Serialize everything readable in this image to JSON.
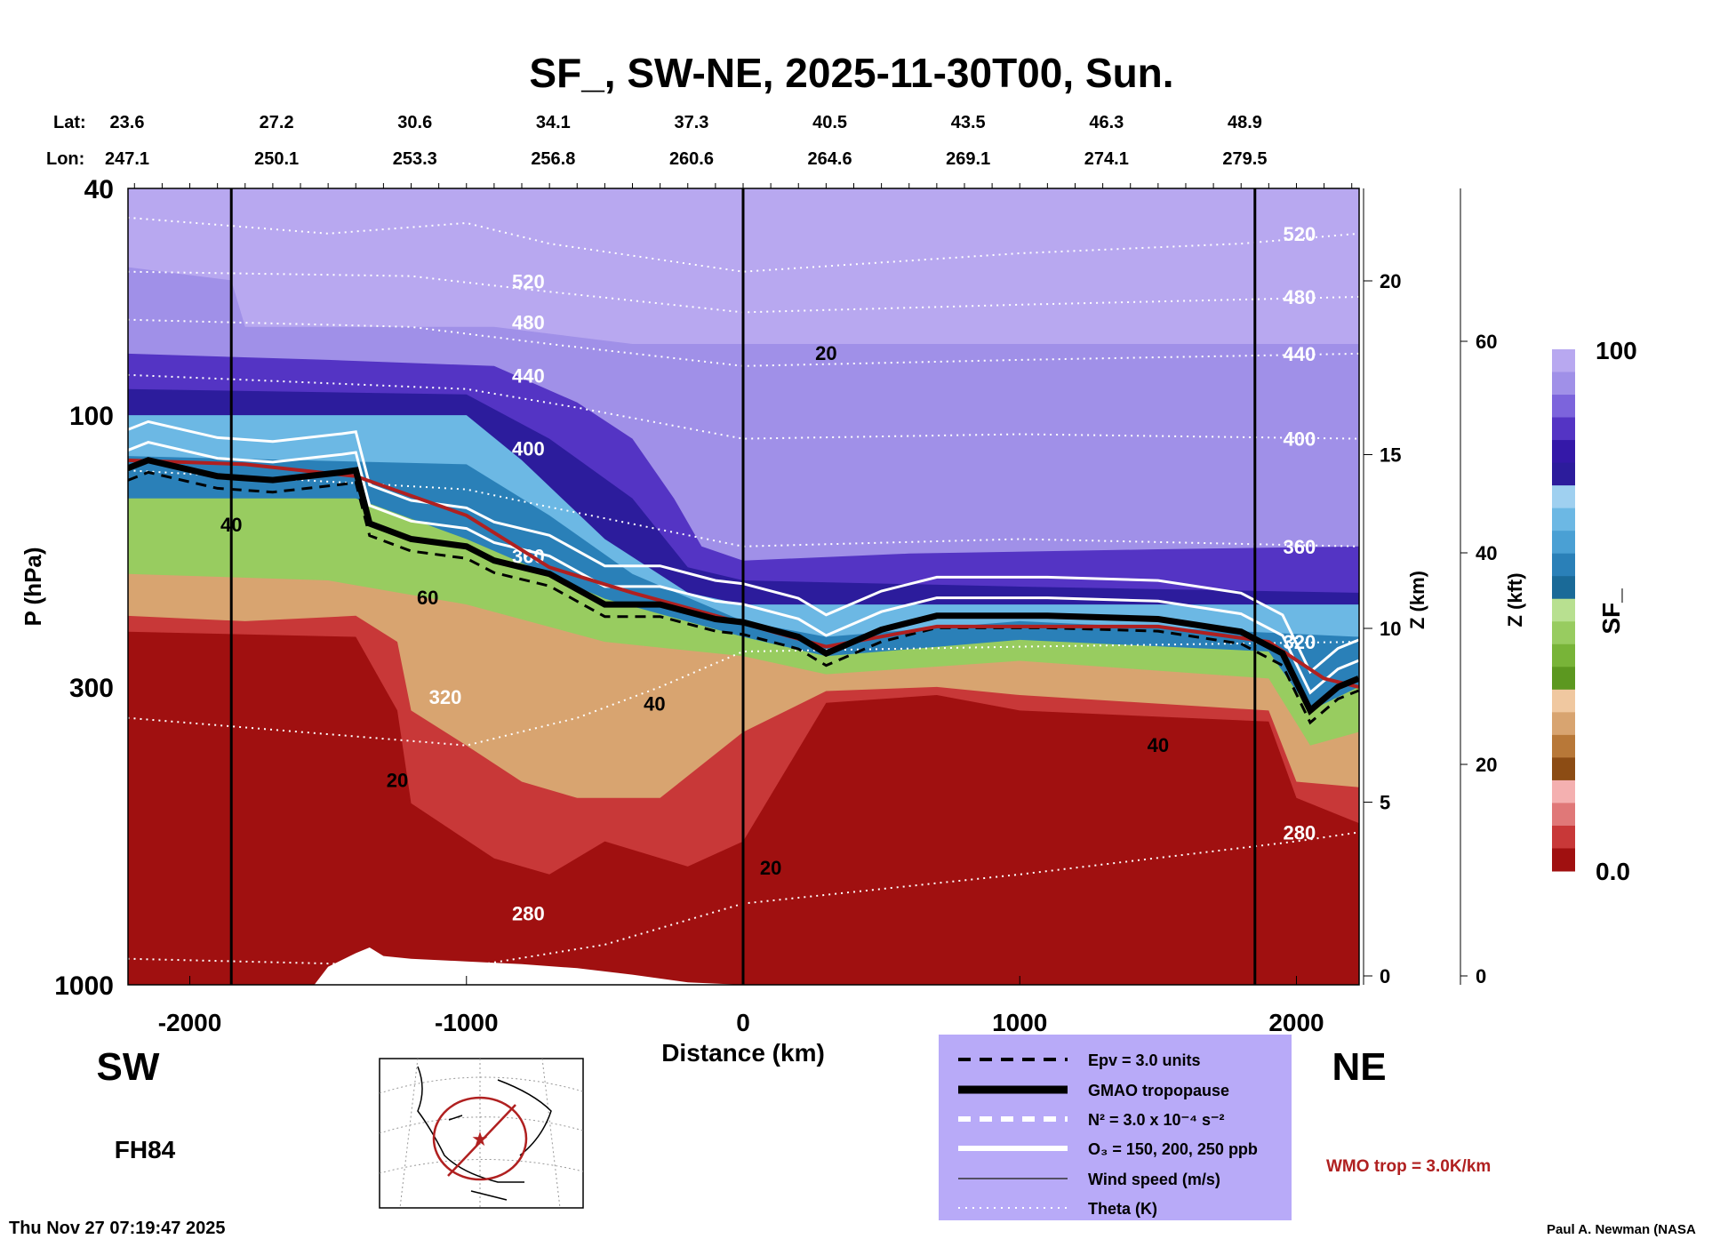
{
  "chart_data": {
    "type": "heatmap",
    "title": "SF_, SW-NE, 2025-11-30T00, Sun.",
    "xlabel": "Distance (km)",
    "ylabel": "P (hPa)",
    "xlim": [
      -2225,
      2225
    ],
    "ylim": [
      1000,
      40
    ],
    "y_scale": "log",
    "x_ticks": [
      -2000,
      -1000,
      0,
      1000,
      2000
    ],
    "y_ticks": [
      40,
      100,
      300,
      1000
    ],
    "lat_label": "Lat:",
    "lon_label": "Lon:",
    "lat_lon_positions_km": [
      -2225,
      -1725,
      -1225,
      -725,
      -225,
      275,
      775,
      1275,
      1775
    ],
    "lat": [
      "23.6",
      "27.2",
      "30.6",
      "34.1",
      "37.3",
      "40.5",
      "43.5",
      "46.3",
      "48.9"
    ],
    "lon": [
      "247.1",
      "250.1",
      "253.3",
      "256.8",
      "260.6",
      "264.6",
      "269.1",
      "274.1",
      "279.5"
    ],
    "vertical_lines_km": [
      -1850,
      0,
      1850
    ],
    "z_km_axis": {
      "label": "Z (km)",
      "ticks": [
        0,
        5,
        10,
        15,
        20
      ]
    },
    "z_kft_axis": {
      "label": "Z (kft)",
      "ticks": [
        0,
        20,
        40,
        60
      ]
    },
    "colorbar": {
      "label": "SF_",
      "min_label": "0.0",
      "max_label": "100",
      "colors": [
        "#b8a8f0",
        "#a090e8",
        "#7c64dc",
        "#5434c4",
        "#3418a8",
        "#2c1c9c",
        "#9fd0f0",
        "#6cb8e4",
        "#4aa0d4",
        "#2a80b8",
        "#1a6a98",
        "#b8e090",
        "#98cc60",
        "#78b438",
        "#5c9820",
        "#f0c8a0",
        "#d8a470",
        "#b87838",
        "#8c4c14",
        "#f4b0b0",
        "#e07878",
        "#c83838",
        "#a01010"
      ]
    },
    "bands": [
      {
        "color": "#a090e8",
        "top_hPa": [
          [
            -2225,
            55
          ],
          [
            -1850,
            58
          ],
          [
            -1800,
            70
          ],
          [
            -900,
            70
          ],
          [
            -400,
            75
          ],
          [
            2225,
            75
          ]
        ]
      },
      {
        "color": "#5434c4",
        "top_hPa": [
          [
            -2225,
            78
          ],
          [
            -1500,
            80
          ],
          [
            -900,
            82
          ],
          [
            -600,
            95
          ],
          [
            -400,
            110
          ],
          [
            -250,
            140
          ],
          [
            -150,
            170
          ],
          [
            0,
            180
          ],
          [
            600,
            175
          ],
          [
            1500,
            172
          ],
          [
            2225,
            170
          ]
        ]
      },
      {
        "color": "#2c1c9c",
        "top_hPa": [
          [
            -2225,
            90
          ],
          [
            -1000,
            92
          ],
          [
            -700,
            110
          ],
          [
            -400,
            140
          ],
          [
            -200,
            185
          ],
          [
            0,
            195
          ],
          [
            1000,
            200
          ],
          [
            2225,
            205
          ]
        ]
      },
      {
        "color": "#6cb8e4",
        "top_hPa": [
          [
            -2225,
            100
          ],
          [
            -1000,
            100
          ],
          [
            -800,
            120
          ],
          [
            -500,
            165
          ],
          [
            -200,
            205
          ],
          [
            0,
            215
          ],
          [
            1000,
            215
          ],
          [
            2225,
            215
          ]
        ]
      },
      {
        "color": "#2a80b8",
        "top_hPa": [
          [
            -2225,
            118
          ],
          [
            -1000,
            122
          ],
          [
            -700,
            150
          ],
          [
            -400,
            190
          ],
          [
            0,
            230
          ],
          [
            300,
            245
          ],
          [
            1000,
            230
          ],
          [
            2225,
            245
          ]
        ]
      },
      {
        "color": "#98cc60",
        "top_hPa": [
          [
            -2225,
            140
          ],
          [
            -1400,
            140
          ],
          [
            -1000,
            165
          ],
          [
            -500,
            210
          ],
          [
            0,
            245
          ],
          [
            300,
            265
          ],
          [
            1000,
            248
          ],
          [
            1900,
            260
          ],
          [
            2050,
            330
          ],
          [
            2225,
            300
          ]
        ]
      },
      {
        "color": "#d8a470",
        "top_hPa": [
          [
            -2225,
            190
          ],
          [
            -1500,
            195
          ],
          [
            -1000,
            215
          ],
          [
            -500,
            250
          ],
          [
            0,
            265
          ],
          [
            300,
            285
          ],
          [
            1000,
            270
          ],
          [
            1900,
            290
          ],
          [
            2050,
            380
          ],
          [
            2225,
            360
          ]
        ]
      },
      {
        "color": "#c83838",
        "top_hPa": [
          [
            -2225,
            225
          ],
          [
            -1800,
            230
          ],
          [
            -1400,
            225
          ],
          [
            -1250,
            250
          ],
          [
            -1200,
            330
          ],
          [
            -1000,
            380
          ],
          [
            -800,
            440
          ],
          [
            -600,
            470
          ],
          [
            -300,
            470
          ],
          [
            0,
            360
          ],
          [
            300,
            305
          ],
          [
            700,
            300
          ],
          [
            1000,
            310
          ],
          [
            1900,
            330
          ],
          [
            2000,
            440
          ],
          [
            2225,
            450
          ]
        ]
      },
      {
        "color": "#a01010",
        "top_hPa": [
          [
            -2225,
            240
          ],
          [
            -1400,
            245
          ],
          [
            -1250,
            330
          ],
          [
            -1200,
            480
          ],
          [
            -900,
            600
          ],
          [
            -700,
            640
          ],
          [
            -500,
            560
          ],
          [
            -200,
            620
          ],
          [
            0,
            560
          ],
          [
            300,
            320
          ],
          [
            700,
            310
          ],
          [
            1000,
            330
          ],
          [
            1900,
            345
          ],
          [
            2000,
            470
          ],
          [
            2225,
            520
          ]
        ]
      }
    ],
    "terrain_hPa": [
      [
        -2225,
        1000
      ],
      [
        -1550,
        1000
      ],
      [
        -1500,
        930
      ],
      [
        -1400,
        880
      ],
      [
        -1350,
        860
      ],
      [
        -1300,
        890
      ],
      [
        -1200,
        900
      ],
      [
        -1000,
        910
      ],
      [
        -800,
        920
      ],
      [
        -600,
        935
      ],
      [
        -400,
        960
      ],
      [
        -200,
        990
      ],
      [
        0,
        1000
      ],
      [
        2225,
        1000
      ]
    ],
    "gmao_tropopause_hPa": [
      [
        -2225,
        124
      ],
      [
        -2150,
        120
      ],
      [
        -1900,
        128
      ],
      [
        -1700,
        130
      ],
      [
        -1450,
        126
      ],
      [
        -1400,
        125
      ],
      [
        -1350,
        155
      ],
      [
        -1200,
        165
      ],
      [
        -1000,
        170
      ],
      [
        -900,
        180
      ],
      [
        -700,
        190
      ],
      [
        -500,
        215
      ],
      [
        -300,
        215
      ],
      [
        -100,
        228
      ],
      [
        0,
        231
      ],
      [
        200,
        245
      ],
      [
        300,
        262
      ],
      [
        500,
        238
      ],
      [
        700,
        225
      ],
      [
        1100,
        225
      ],
      [
        1500,
        228
      ],
      [
        1800,
        240
      ],
      [
        1950,
        262
      ],
      [
        2050,
        330
      ],
      [
        2150,
        300
      ],
      [
        2225,
        290
      ]
    ],
    "wmo_tropopause_hPa": [
      [
        -2225,
        120
      ],
      [
        -1800,
        122
      ],
      [
        -1400,
        128
      ],
      [
        -1000,
        150
      ],
      [
        -700,
        185
      ],
      [
        -400,
        205
      ],
      [
        0,
        232
      ],
      [
        300,
        255
      ],
      [
        700,
        235
      ],
      [
        1500,
        235
      ],
      [
        1900,
        250
      ],
      [
        2100,
        290
      ],
      [
        2225,
        300
      ]
    ],
    "theta_contours": [
      {
        "label": "520",
        "hPa": [
          [
            -2225,
            45
          ],
          [
            -1500,
            48
          ],
          [
            -1000,
            46
          ],
          [
            -700,
            50
          ],
          [
            0,
            56
          ],
          [
            1000,
            52
          ],
          [
            1800,
            50
          ],
          [
            2225,
            48
          ]
        ]
      },
      {
        "label": "480",
        "hPa": [
          [
            -2225,
            56
          ],
          [
            -1200,
            57
          ],
          [
            -800,
            60
          ],
          [
            0,
            66
          ],
          [
            1000,
            64
          ],
          [
            2225,
            62
          ]
        ]
      },
      {
        "label": "440",
        "hPa": [
          [
            -2225,
            68
          ],
          [
            -1200,
            70
          ],
          [
            -700,
            75
          ],
          [
            0,
            82
          ],
          [
            1000,
            80
          ],
          [
            2225,
            78
          ]
        ]
      },
      {
        "label": "400",
        "hPa": [
          [
            -2225,
            85
          ],
          [
            -1000,
            90
          ],
          [
            -600,
            97
          ],
          [
            0,
            110
          ],
          [
            1000,
            108
          ],
          [
            2225,
            110
          ]
        ]
      },
      {
        "label": "360",
        "hPa": [
          [
            -2225,
            125
          ],
          [
            -1000,
            135
          ],
          [
            -700,
            145
          ],
          [
            0,
            170
          ],
          [
            1000,
            165
          ],
          [
            2225,
            170
          ]
        ]
      },
      {
        "label": "320",
        "hPa": [
          [
            -2225,
            340
          ],
          [
            -1000,
            380
          ],
          [
            -600,
            340
          ],
          [
            -300,
            300
          ],
          [
            0,
            260
          ],
          [
            1000,
            255
          ],
          [
            2225,
            250
          ]
        ]
      },
      {
        "label": "280",
        "hPa": [
          [
            -2225,
            900
          ],
          [
            -1000,
            930
          ],
          [
            -500,
            850
          ],
          [
            0,
            720
          ],
          [
            1000,
            640
          ],
          [
            2000,
            560
          ],
          [
            2225,
            540
          ]
        ]
      }
    ],
    "wind_labels": [
      {
        "label": "20",
        "km": 300,
        "hPa": 80
      },
      {
        "label": "40",
        "km": -1850,
        "hPa": 160
      },
      {
        "label": "60",
        "km": -1140,
        "hPa": 215
      },
      {
        "label": "40",
        "km": -320,
        "hPa": 330
      },
      {
        "label": "20",
        "km": -1250,
        "hPa": 450
      },
      {
        "label": "20",
        "km": 100,
        "hPa": 640
      },
      {
        "label": "40",
        "km": 1500,
        "hPa": 390
      }
    ]
  },
  "labels": {
    "sw": "SW",
    "ne": "NE",
    "forecast_hour": "FH84",
    "timestamp": "Thu Nov 27 07:19:47 2025",
    "credit": "Paul A. Newman (NASA",
    "wmo_trop": "WMO trop = 3.0K/km"
  },
  "legend": {
    "items": [
      {
        "label": "Epv = 3.0 units",
        "style": "dashed-black"
      },
      {
        "label": "GMAO tropopause",
        "style": "thick-black"
      },
      {
        "label": "N² = 3.0 x 10⁻⁴ s⁻²",
        "style": "dashed-white"
      },
      {
        "label": "O₃ = 150, 200, 250 ppb",
        "style": "thick-white"
      },
      {
        "label": "Wind speed (m/s)",
        "style": "thin-black"
      },
      {
        "label": "Theta (K)",
        "style": "dotted-white"
      }
    ]
  },
  "colors": {
    "plot_bg": "#b8a8f0",
    "legend_bg": "#b8aaf8",
    "wmo": "#b02020",
    "terrain": "#ffffff"
  }
}
